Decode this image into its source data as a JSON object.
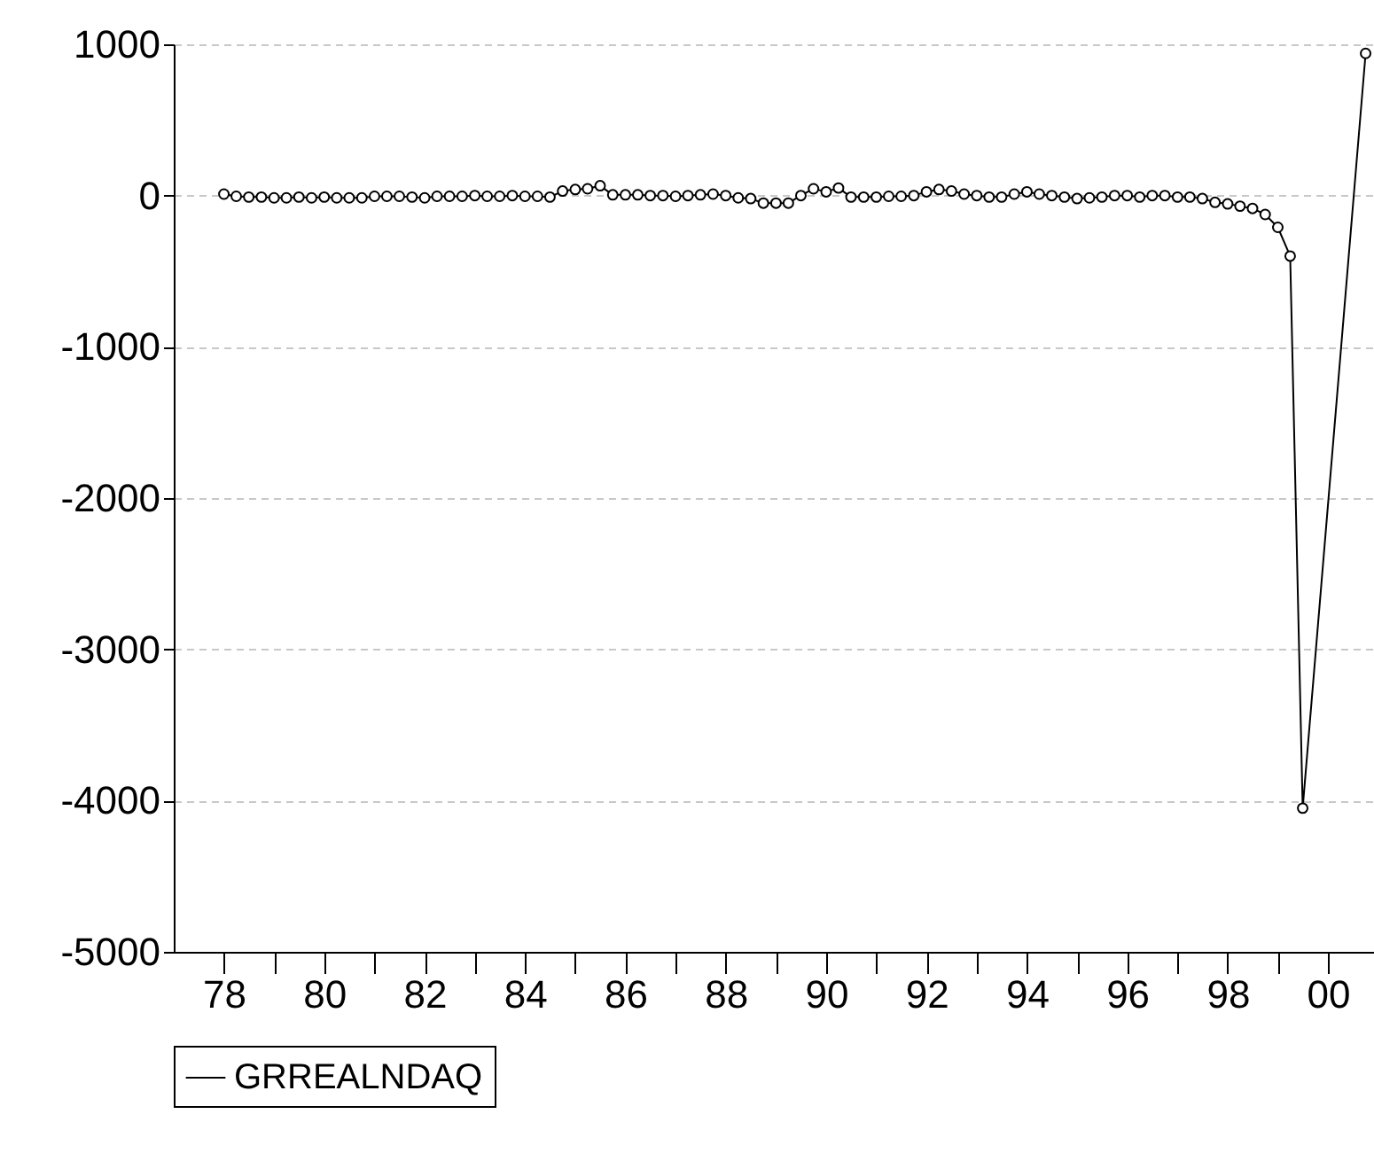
{
  "chart_data": {
    "type": "line",
    "x": [
      "1978-01",
      "1978-04",
      "1978-07",
      "1978-10",
      "1979-01",
      "1979-04",
      "1979-07",
      "1979-10",
      "1980-01",
      "1980-04",
      "1980-07",
      "1980-10",
      "1981-01",
      "1981-04",
      "1981-07",
      "1981-10",
      "1982-01",
      "1982-04",
      "1982-07",
      "1982-10",
      "1983-01",
      "1983-04",
      "1983-07",
      "1983-10",
      "1984-01",
      "1984-04",
      "1984-07",
      "1984-10",
      "1985-01",
      "1985-04",
      "1985-07",
      "1985-10",
      "1986-01",
      "1986-04",
      "1986-07",
      "1986-10",
      "1987-01",
      "1987-04",
      "1987-07",
      "1987-10",
      "1988-01",
      "1988-04",
      "1988-07",
      "1988-10",
      "1989-01",
      "1989-04",
      "1989-07",
      "1989-10",
      "1990-01",
      "1990-04",
      "1990-07",
      "1990-10",
      "1991-01",
      "1991-04",
      "1991-07",
      "1991-10",
      "1992-01",
      "1992-04",
      "1992-07",
      "1992-10",
      "1993-01",
      "1993-04",
      "1993-07",
      "1993-10",
      "1994-01",
      "1994-04",
      "1994-07",
      "1994-10",
      "1995-01",
      "1995-04",
      "1995-07",
      "1995-10",
      "1996-01",
      "1996-04",
      "1996-07",
      "1996-10",
      "1997-01",
      "1997-04",
      "1997-07",
      "1997-10",
      "1998-01",
      "1998-04",
      "1998-07",
      "1998-10",
      "1999-01",
      "1999-04",
      "1999-07",
      "2000-10"
    ],
    "series": [
      {
        "name": "GRREALNDAQ",
        "color": "#000000",
        "values": [
          10,
          -5,
          -10,
          -10,
          -15,
          -15,
          -10,
          -15,
          -10,
          -15,
          -15,
          -15,
          -5,
          -5,
          -5,
          -10,
          -15,
          -5,
          -5,
          -5,
          0,
          -5,
          -5,
          0,
          -5,
          -5,
          -10,
          30,
          40,
          45,
          65,
          5,
          5,
          5,
          0,
          0,
          -5,
          0,
          5,
          10,
          0,
          -15,
          -20,
          -50,
          -50,
          -50,
          0,
          45,
          25,
          50,
          -10,
          -10,
          -10,
          -5,
          -5,
          0,
          25,
          40,
          30,
          10,
          0,
          -10,
          -10,
          10,
          25,
          10,
          0,
          -10,
          -20,
          -15,
          -10,
          0,
          0,
          -10,
          0,
          0,
          -10,
          -10,
          -20,
          -45,
          -55,
          -70,
          -85,
          -125,
          -210,
          -400,
          -4050,
          940
        ]
      }
    ],
    "xlim": [
      "1977-01",
      "2000-12"
    ],
    "xticks": [
      {
        "value": "1978-01",
        "label": "78"
      },
      {
        "value": "1979-01",
        "label": null
      },
      {
        "value": "1980-01",
        "label": "80"
      },
      {
        "value": "1981-01",
        "label": null
      },
      {
        "value": "1982-01",
        "label": "82"
      },
      {
        "value": "1983-01",
        "label": null
      },
      {
        "value": "1984-01",
        "label": "84"
      },
      {
        "value": "1985-01",
        "label": null
      },
      {
        "value": "1986-01",
        "label": "86"
      },
      {
        "value": "1987-01",
        "label": null
      },
      {
        "value": "1988-01",
        "label": "88"
      },
      {
        "value": "1989-01",
        "label": null
      },
      {
        "value": "1990-01",
        "label": "90"
      },
      {
        "value": "1991-01",
        "label": null
      },
      {
        "value": "1992-01",
        "label": "92"
      },
      {
        "value": "1993-01",
        "label": null
      },
      {
        "value": "1994-01",
        "label": "94"
      },
      {
        "value": "1995-01",
        "label": null
      },
      {
        "value": "1996-01",
        "label": "96"
      },
      {
        "value": "1997-01",
        "label": null
      },
      {
        "value": "1998-01",
        "label": "98"
      },
      {
        "value": "1999-01",
        "label": null
      },
      {
        "value": "2000-01",
        "label": "00"
      }
    ],
    "ylim": [
      -5000,
      1000
    ],
    "yticks": [
      -5000,
      -4000,
      -3000,
      -2000,
      -1000,
      0,
      1000
    ],
    "grid": "y",
    "legend": "bottom",
    "marker": "circle",
    "line_style": "solid"
  }
}
